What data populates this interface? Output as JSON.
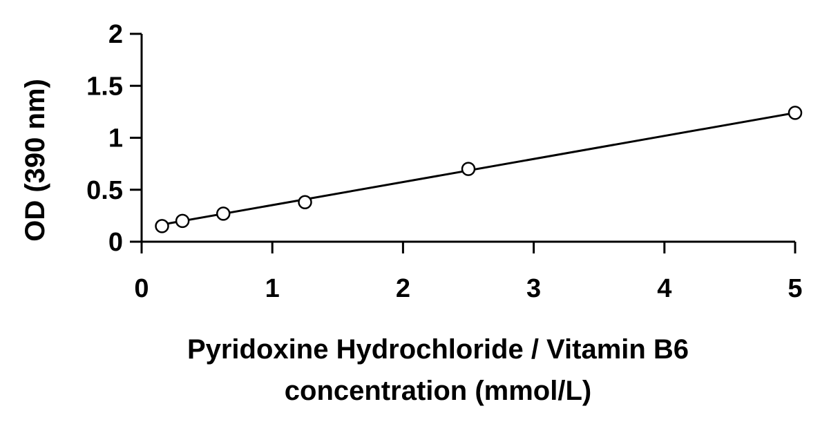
{
  "chart_data": {
    "type": "scatter",
    "title": "",
    "xlabel_lines": [
      "Pyridoxine Hydrochloride / Vitamin B6",
      "concentration (mmol/L)"
    ],
    "ylabel": "OD (390 nm)",
    "xlim": [
      0,
      5
    ],
    "ylim": [
      0,
      2
    ],
    "x_ticks": [
      0,
      1,
      2,
      3,
      4,
      5
    ],
    "x_tick_labels": [
      "0",
      "1",
      "2",
      "3",
      "4",
      "5"
    ],
    "y_ticks": [
      0,
      0.5,
      1,
      1.5,
      2
    ],
    "y_tick_labels": [
      "0",
      "0.5",
      "1",
      "1.5",
      "2"
    ],
    "grid": false,
    "series": [
      {
        "x": [
          0.156,
          0.3125,
          0.625,
          1.25,
          2.5,
          5
        ],
        "y": [
          0.15,
          0.2,
          0.27,
          0.38,
          0.7,
          1.24
        ],
        "marker": "open-circle",
        "color": "#000000"
      }
    ],
    "trendline": {
      "type": "linear",
      "x": [
        0.156,
        5
      ],
      "y": [
        0.165,
        1.24
      ],
      "color": "#000000"
    }
  }
}
